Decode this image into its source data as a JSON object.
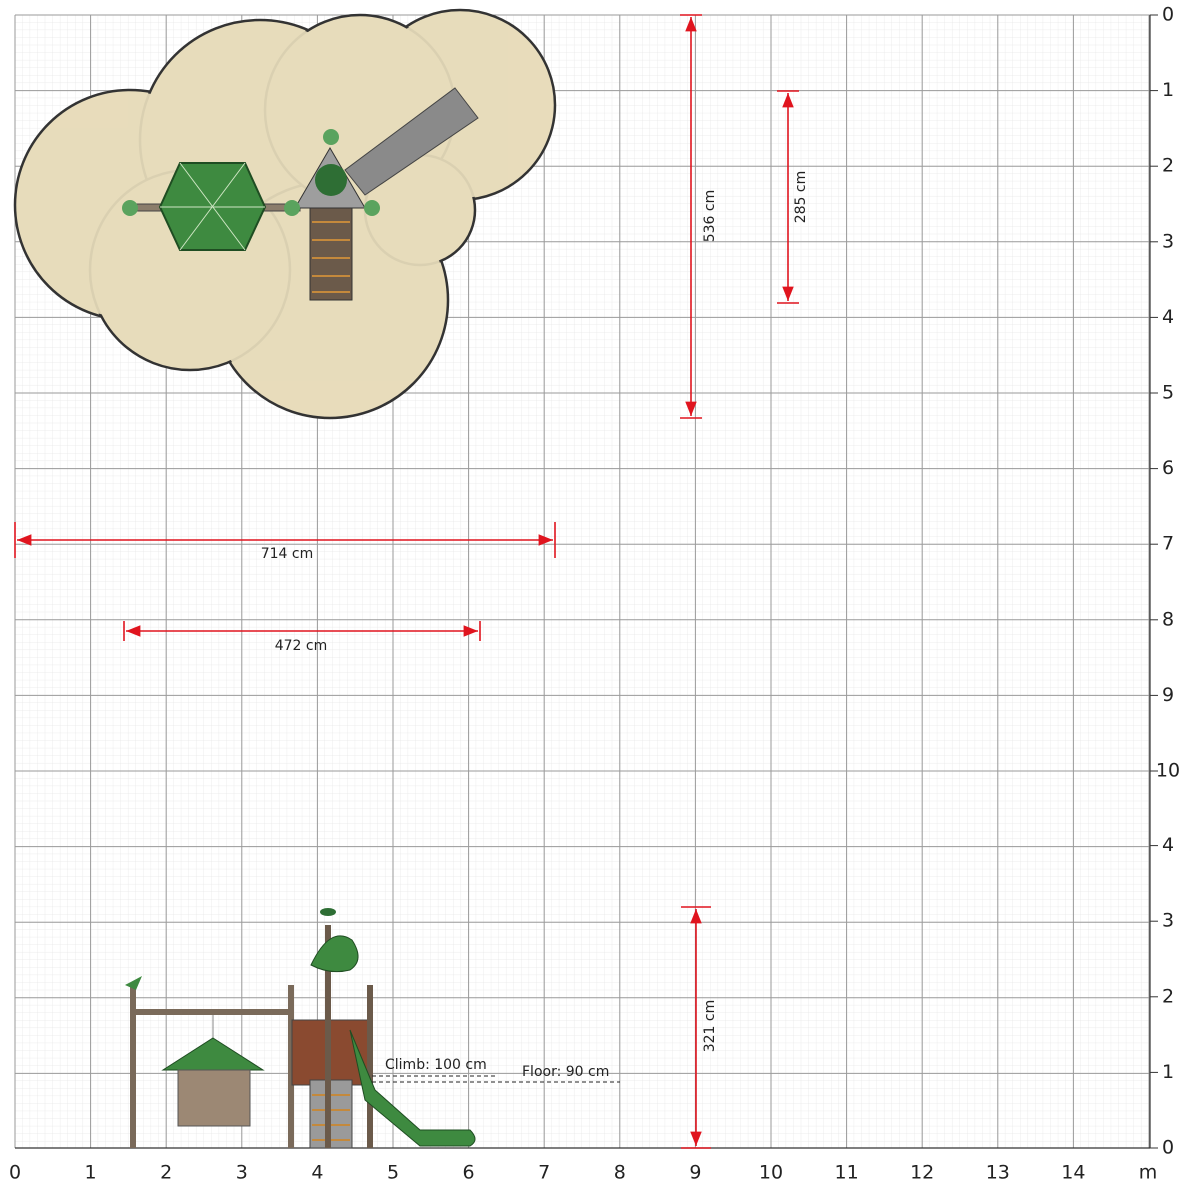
{
  "x_axis": {
    "ticks": [
      "0",
      "1",
      "2",
      "3",
      "4",
      "5",
      "6",
      "7",
      "8",
      "9",
      "10",
      "11",
      "12",
      "13",
      "14"
    ],
    "unit": "m"
  },
  "top_view": {
    "y_ticks": [
      "0",
      "1",
      "2",
      "3",
      "4",
      "5",
      "6",
      "7",
      "8",
      "9",
      "10"
    ],
    "dimensions": {
      "depth": "536 cm",
      "slide_depth": "285 cm",
      "width": "714 cm",
      "inner_width": "472 cm"
    }
  },
  "side_view": {
    "y_ticks": [
      "4",
      "3",
      "2",
      "1",
      "0"
    ],
    "height": "321 cm",
    "climb": "Climb: 100 cm",
    "floor": "Floor: 90 cm"
  }
}
